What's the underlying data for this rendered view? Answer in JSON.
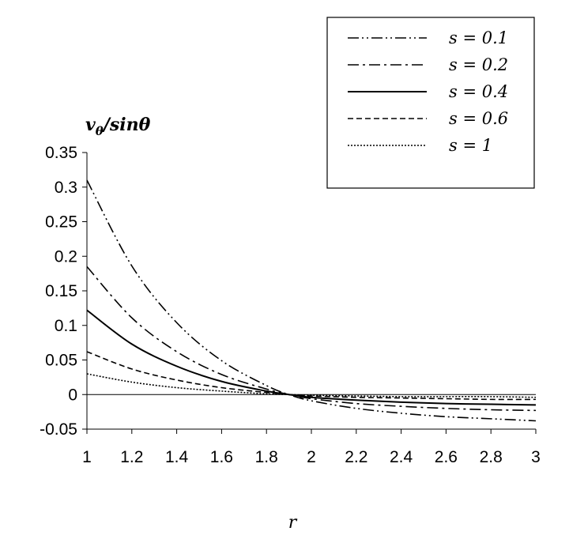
{
  "chart_data": {
    "type": "line",
    "ylabel": "vθ/sinθ",
    "ylabel_main": "v",
    "ylabel_sub": "θ",
    "ylabel_rest": "/sinθ",
    "xlabel": "r",
    "xlim": [
      1,
      3
    ],
    "ylim": [
      -0.05,
      0.35
    ],
    "xticks": [
      "1",
      "1.2",
      "1.4",
      "1.6",
      "1.8",
      "2",
      "2.2",
      "2.4",
      "2.6",
      "2.8",
      "3"
    ],
    "yticks": [
      "0.35",
      "0.3",
      "0.25",
      "0.2",
      "0.15",
      "0.1",
      "0.05",
      "0",
      "-0.05"
    ],
    "grid": false,
    "legend_position": "top-right",
    "x": [
      1.0,
      1.2,
      1.4,
      1.6,
      1.8,
      1.9,
      2.0,
      2.2,
      2.4,
      2.6,
      2.8,
      3.0
    ],
    "series": [
      {
        "name": "s = 0.1",
        "style": "dash-dot-dot",
        "values": [
          0.31,
          0.186,
          0.104,
          0.049,
          0.013,
          0.0,
          -0.009,
          -0.02,
          -0.027,
          -0.032,
          -0.035,
          -0.038
        ]
      },
      {
        "name": "s = 0.2",
        "style": "dash-dot",
        "values": [
          0.185,
          0.111,
          0.062,
          0.029,
          0.008,
          0.0,
          -0.006,
          -0.013,
          -0.017,
          -0.02,
          -0.022,
          -0.023
        ]
      },
      {
        "name": "s = 0.4",
        "style": "solid",
        "values": [
          0.122,
          0.073,
          0.041,
          0.019,
          0.005,
          0.0,
          -0.004,
          -0.008,
          -0.011,
          -0.013,
          -0.014,
          -0.015
        ]
      },
      {
        "name": "s = 0.6",
        "style": "dashed",
        "values": [
          0.062,
          0.037,
          0.021,
          0.01,
          0.003,
          0.0,
          -0.002,
          -0.004,
          -0.005,
          -0.006,
          -0.007,
          -0.007
        ]
      },
      {
        "name": "s = 1",
        "style": "dotted",
        "values": [
          0.03,
          0.018,
          0.01,
          0.005,
          0.001,
          0.0,
          -0.001,
          -0.002,
          -0.003,
          -0.003,
          -0.003,
          -0.004
        ]
      }
    ]
  }
}
